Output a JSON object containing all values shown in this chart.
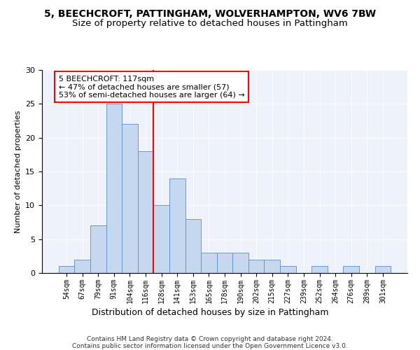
{
  "title": "5, BEECHCROFT, PATTINGHAM, WOLVERHAMPTON, WV6 7BW",
  "subtitle": "Size of property relative to detached houses in Pattingham",
  "xlabel": "Distribution of detached houses by size in Pattingham",
  "ylabel": "Number of detached properties",
  "bin_labels": [
    "54sqm",
    "67sqm",
    "79sqm",
    "91sqm",
    "104sqm",
    "116sqm",
    "128sqm",
    "141sqm",
    "153sqm",
    "165sqm",
    "178sqm",
    "190sqm",
    "202sqm",
    "215sqm",
    "227sqm",
    "239sqm",
    "252sqm",
    "264sqm",
    "276sqm",
    "289sqm",
    "301sqm"
  ],
  "bar_heights": [
    1,
    2,
    7,
    25,
    22,
    18,
    10,
    14,
    8,
    3,
    3,
    3,
    2,
    2,
    1,
    0,
    1,
    0,
    1,
    0,
    1
  ],
  "bar_color": "#c5d8f0",
  "bar_edgecolor": "#5b8fc9",
  "vline_x_index": 5,
  "vline_color": "red",
  "annotation_line1": "5 BEECHCROFT: 117sqm",
  "annotation_line2": "← 47% of detached houses are smaller (57)",
  "annotation_line3": "53% of semi-detached houses are larger (64) →",
  "annotation_box_color": "white",
  "annotation_box_edgecolor": "red",
  "ylim": [
    0,
    30
  ],
  "yticks": [
    0,
    5,
    10,
    15,
    20,
    25,
    30
  ],
  "footer_text": "Contains HM Land Registry data © Crown copyright and database right 2024.\nContains public sector information licensed under the Open Government Licence v3.0.",
  "title_fontsize": 10,
  "subtitle_fontsize": 9.5,
  "xlabel_fontsize": 9,
  "ylabel_fontsize": 8,
  "annotation_fontsize": 8,
  "tick_fontsize": 7,
  "bg_color": "#eef2fb"
}
